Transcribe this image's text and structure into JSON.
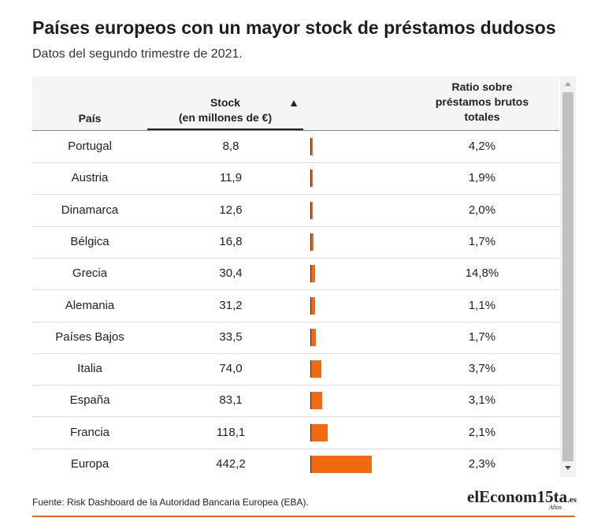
{
  "header": {
    "title": "Países europeos con un mayor stock de préstamos dudosos",
    "subtitle": "Datos del segundo trimestre de 2021."
  },
  "table": {
    "columns": [
      "País",
      "Stock\n(en millones de €)",
      "Ratio sobre\npréstamos brutos\ntotales"
    ],
    "sort_indicator": "▲",
    "bar_color": "#f26a0f",
    "rows": [
      {
        "country": "Portugal",
        "stock": {
          "value": 8.8,
          "label": "8,8"
        },
        "ratio": "4,2%"
      },
      {
        "country": "Austria",
        "stock": {
          "value": 11.9,
          "label": "11,9"
        },
        "ratio": "1,9%"
      },
      {
        "country": "Dinamarca",
        "stock": {
          "value": 12.6,
          "label": "12,6"
        },
        "ratio": "2,0%"
      },
      {
        "country": "Bélgica",
        "stock": {
          "value": 16.8,
          "label": "16,8"
        },
        "ratio": "1,7%"
      },
      {
        "country": "Grecia",
        "stock": {
          "value": 30.4,
          "label": "30,4"
        },
        "ratio": "14,8%"
      },
      {
        "country": "Alemania",
        "stock": {
          "value": 31.2,
          "label": "31,2"
        },
        "ratio": "1,1%"
      },
      {
        "country": "Países Bajos",
        "stock": {
          "value": 33.5,
          "label": "33,5"
        },
        "ratio": "1,7%"
      },
      {
        "country": "Italia",
        "stock": {
          "value": 74.0,
          "label": "74,0"
        },
        "ratio": "3,7%"
      },
      {
        "country": "España",
        "stock": {
          "value": 83.1,
          "label": "83,1"
        },
        "ratio": "3,1%"
      },
      {
        "country": "Francia",
        "stock": {
          "value": 118.1,
          "label": "118,1"
        },
        "ratio": "2,1%"
      },
      {
        "country": "Europa",
        "stock": {
          "value": 442.2,
          "label": "442,2"
        },
        "ratio": "2,3%"
      }
    ]
  },
  "footer": {
    "source": "Fuente: Risk Dashboard de la Autoridad Bancaria Europea (EBA).",
    "logo": "elEconom15ta",
    "logo_suffix": ".es",
    "logo_years": "Años"
  }
}
